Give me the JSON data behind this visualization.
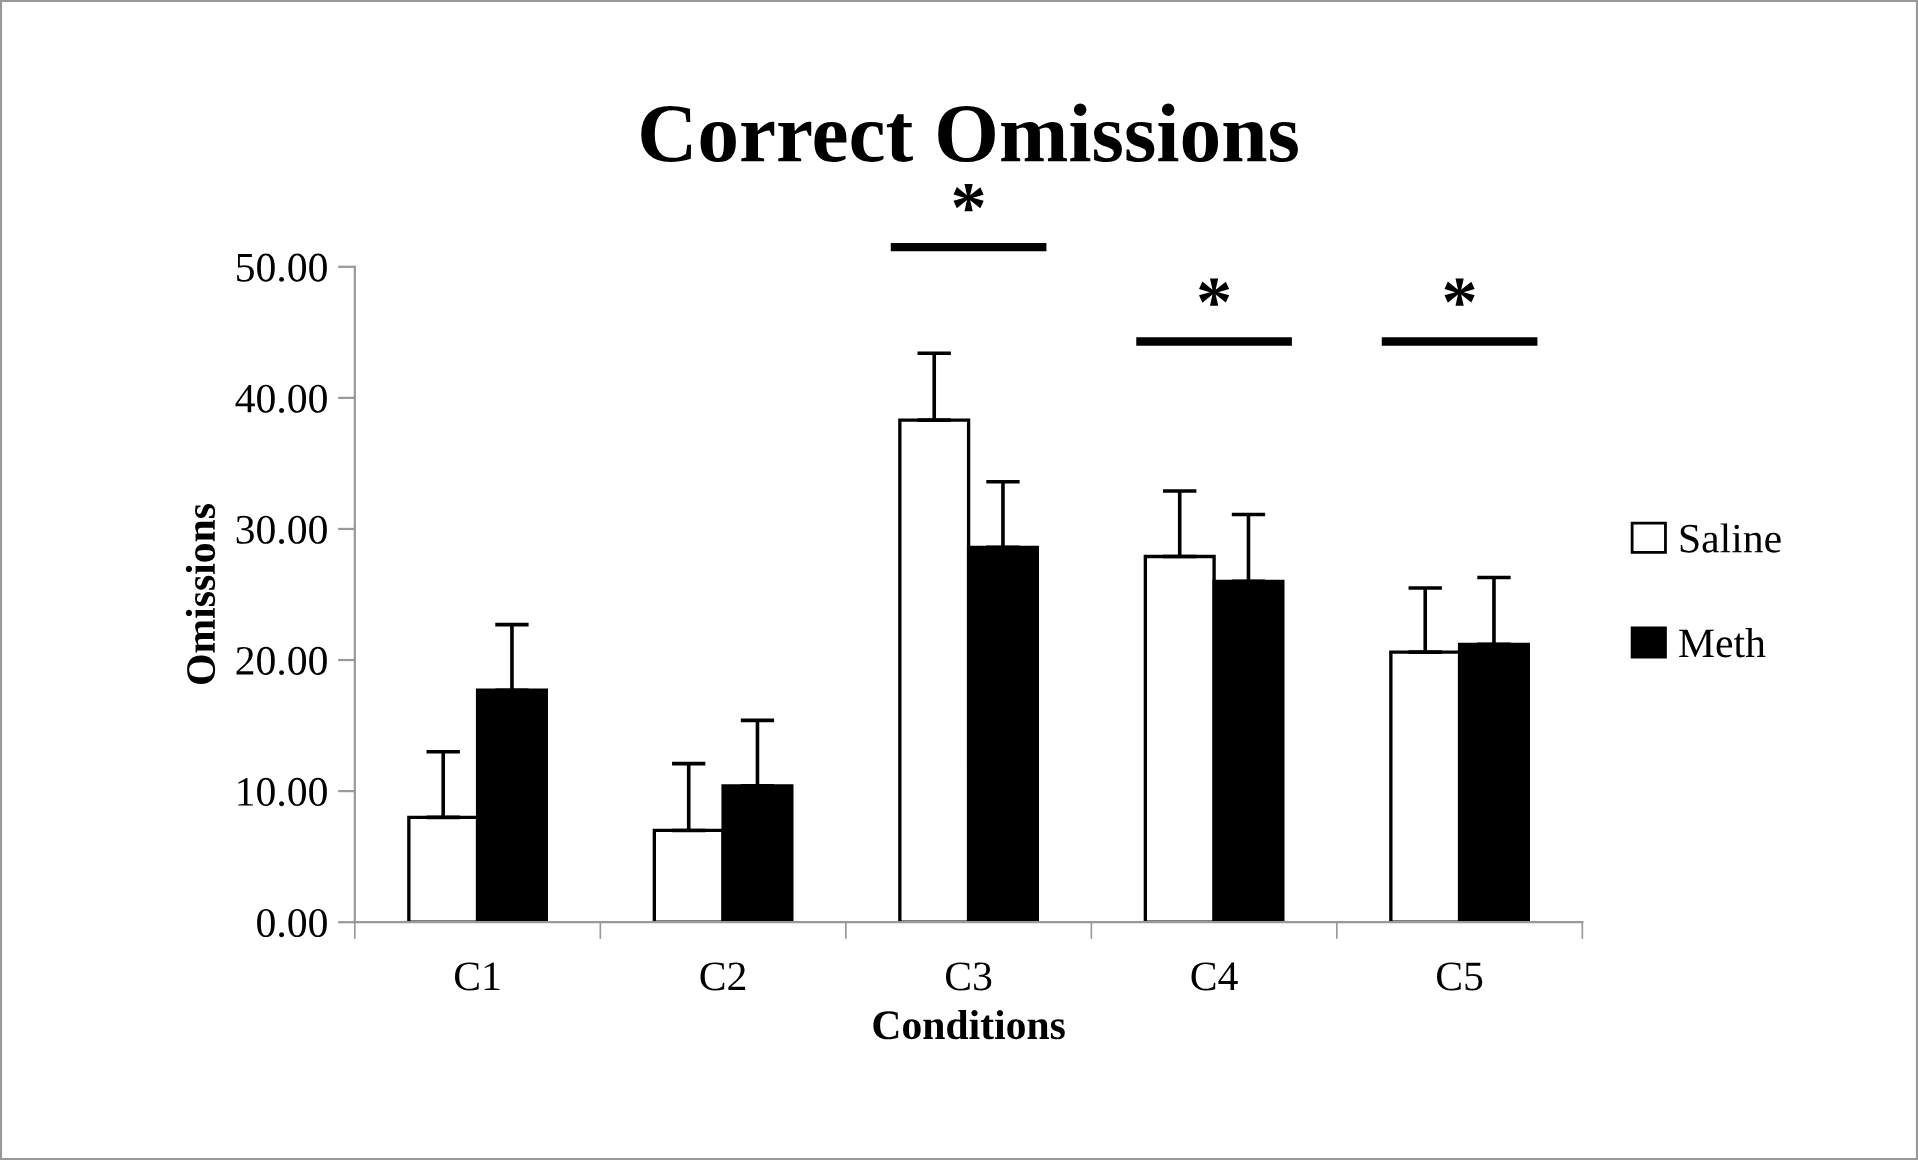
{
  "chart_data": {
    "type": "bar",
    "title": "Correct Omissions",
    "xlabel": "Conditions",
    "ylabel": "Omissions",
    "categories": [
      "C1",
      "C2",
      "C3",
      "C4",
      "C5"
    ],
    "series": [
      {
        "name": "Saline",
        "color": "#ffffff",
        "values": [
          8.0,
          7.0,
          38.3,
          27.9,
          20.6
        ],
        "errors": [
          [
            8.0,
            13.0
          ],
          [
            7.0,
            12.1
          ],
          [
            38.3,
            43.4
          ],
          [
            27.9,
            32.9
          ],
          [
            20.6,
            25.5
          ]
        ]
      },
      {
        "name": "Meth",
        "color": "#000000",
        "values": [
          17.7,
          10.4,
          28.6,
          26.0,
          21.2
        ],
        "errors": [
          [
            17.7,
            22.7
          ],
          [
            10.4,
            15.4
          ],
          [
            28.6,
            33.6
          ],
          [
            26.0,
            31.1
          ],
          [
            21.2,
            26.3
          ]
        ]
      }
    ],
    "ylim": [
      0,
      50
    ],
    "yticks": [
      {
        "value": 0,
        "label": "0.00"
      },
      {
        "value": 10,
        "label": "10.00"
      },
      {
        "value": 20,
        "label": "20.00"
      },
      {
        "value": 30,
        "label": "30.00"
      },
      {
        "value": 40,
        "label": "40.00"
      },
      {
        "value": 50,
        "label": "50.00"
      }
    ],
    "annotations": [
      "*",
      "*",
      "*"
    ],
    "grid": false,
    "legend": "right"
  }
}
